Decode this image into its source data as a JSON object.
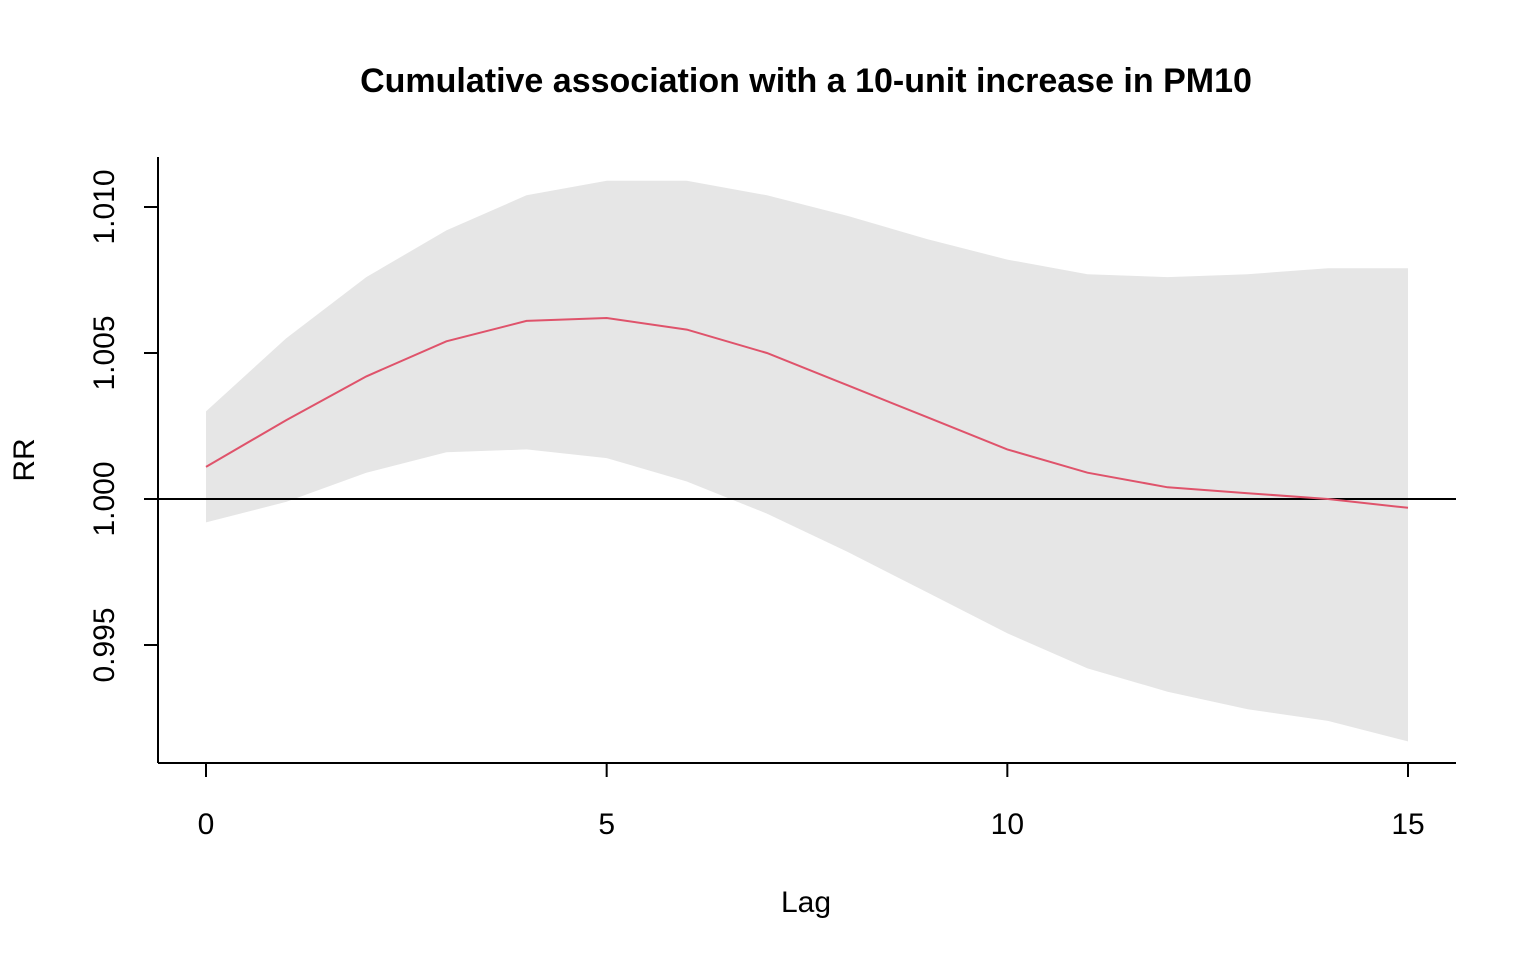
{
  "chart_data": {
    "type": "line",
    "title": "Cumulative association with a 10-unit increase in PM10",
    "xlabel": "Lag",
    "ylabel": "RR",
    "xlim": [
      0,
      15
    ],
    "ylim": [
      0.992,
      1.0115
    ],
    "x_ticks": [
      "0",
      "5",
      "10",
      "15"
    ],
    "y_ticks": [
      "0.995",
      "1.000",
      "1.005",
      "1.010"
    ],
    "reference_line": 1.0,
    "colors": {
      "line": "#DF536B",
      "ci_band": "#E6E6E6",
      "reference": "#000000"
    },
    "x": [
      0,
      1,
      2,
      3,
      4,
      5,
      6,
      7,
      8,
      9,
      10,
      11,
      12,
      13,
      14,
      15
    ],
    "series": [
      {
        "values": [
          1.0011,
          1.0027,
          1.0042,
          1.0054,
          1.0061,
          1.0062,
          1.0058,
          1.005,
          1.0039,
          1.0028,
          1.0017,
          1.0009,
          1.0004,
          1.0002,
          1.0,
          0.9997
        ]
      }
    ],
    "ci_lower": [
      0.9992,
      0.9999,
      1.0009,
      1.0016,
      1.0017,
      1.0014,
      1.0006,
      0.9995,
      0.9982,
      0.9968,
      0.9954,
      0.9942,
      0.9934,
      0.9928,
      0.9924,
      0.9917
    ],
    "ci_upper": [
      1.003,
      1.0055,
      1.0076,
      1.0092,
      1.0104,
      1.0109,
      1.0109,
      1.0104,
      1.0097,
      1.0089,
      1.0082,
      1.0077,
      1.0076,
      1.0077,
      1.0079,
      1.0079
    ],
    "grid": false
  }
}
